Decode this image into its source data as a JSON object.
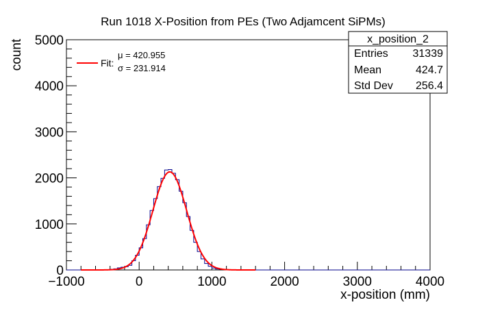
{
  "chart_data": {
    "type": "bar",
    "title": "Run 1018 X-Position from PEs (Two Adjamcent SiPMs)",
    "xlabel": "x-position (mm)",
    "ylabel": "count",
    "xlim": [
      -1000,
      4000
    ],
    "ylim": [
      0,
      5000
    ],
    "x_ticks": [
      -1000,
      0,
      1000,
      2000,
      3000,
      4000
    ],
    "x_tick_labels": [
      "−1000",
      "0",
      "1000",
      "2000",
      "3000",
      "4000"
    ],
    "y_ticks": [
      0,
      1000,
      2000,
      3000,
      4000,
      5000
    ],
    "y_tick_labels": [
      "0",
      "1000",
      "2000",
      "3000",
      "4000",
      "5000"
    ],
    "grid": false,
    "histogram": {
      "name": "x_position_2",
      "color": "#00008b",
      "bin_width": 50,
      "bin_lefts": [
        -400,
        -350,
        -300,
        -250,
        -200,
        -150,
        -100,
        -50,
        0,
        50,
        100,
        150,
        200,
        250,
        300,
        350,
        400,
        450,
        500,
        550,
        600,
        650,
        700,
        750,
        800,
        850,
        900,
        950,
        1000,
        1050,
        1100,
        1150,
        1200,
        1250
      ],
      "counts": [
        15,
        25,
        45,
        60,
        70,
        100,
        200,
        320,
        480,
        680,
        980,
        1290,
        1550,
        1810,
        1990,
        2170,
        2180,
        2100,
        1960,
        1710,
        1460,
        1160,
        860,
        600,
        400,
        240,
        140,
        80,
        40,
        20,
        15,
        10,
        6,
        4
      ]
    },
    "fit": {
      "type": "gaussian",
      "color": "#ff0000",
      "mu": 420.955,
      "sigma": 231.914,
      "amplitude": 2130
    },
    "legend": {
      "placement": "top-left",
      "label": "Fit:",
      "line1": "μ = 420.955",
      "line2": "σ = 231.914"
    },
    "stats_box": {
      "placement": "top-right",
      "title": "x_position_2",
      "rows": [
        {
          "label": "Entries",
          "value": "31339"
        },
        {
          "label": "Mean",
          "value": "424.7"
        },
        {
          "label": "Std Dev",
          "value": "256.4"
        }
      ]
    }
  }
}
